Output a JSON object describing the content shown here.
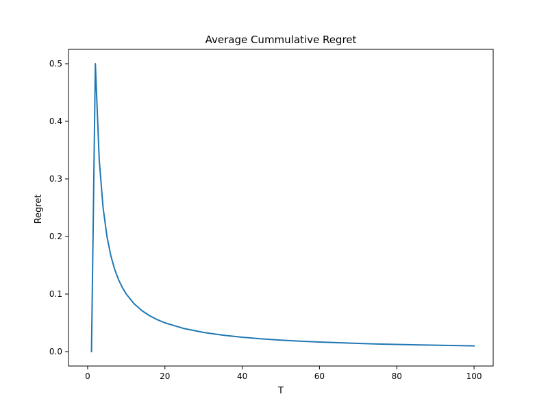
{
  "chart_data": {
    "type": "line",
    "title": "Average Cummulative Regret",
    "xlabel": "T",
    "ylabel": "Regret",
    "xlim": [
      -4.95,
      104.95
    ],
    "ylim": [
      -0.025,
      0.525
    ],
    "xticks": [
      0,
      20,
      40,
      60,
      80,
      100
    ],
    "yticks": [
      0.0,
      0.1,
      0.2,
      0.3,
      0.4,
      0.5
    ],
    "xtick_labels": [
      "0",
      "20",
      "40",
      "60",
      "80",
      "100"
    ],
    "ytick_labels": [
      "0.0",
      "0.1",
      "0.2",
      "0.3",
      "0.4",
      "0.5"
    ],
    "grid": false,
    "legend": "none",
    "series": [
      {
        "color": "#1f77b4",
        "x": [
          1,
          2,
          3,
          4,
          5,
          6,
          7,
          8,
          9,
          10,
          12,
          14,
          16,
          18,
          20,
          25,
          30,
          35,
          40,
          45,
          50,
          55,
          60,
          65,
          70,
          75,
          80,
          85,
          90,
          95,
          100
        ],
        "y": [
          0.0,
          0.5,
          0.3333,
          0.25,
          0.2,
          0.1667,
          0.1429,
          0.125,
          0.1111,
          0.1,
          0.0833,
          0.0714,
          0.0625,
          0.0556,
          0.05,
          0.04,
          0.0333,
          0.0286,
          0.025,
          0.0222,
          0.02,
          0.0182,
          0.0167,
          0.0154,
          0.0143,
          0.0133,
          0.0125,
          0.0118,
          0.0111,
          0.0105,
          0.01
        ]
      }
    ]
  }
}
